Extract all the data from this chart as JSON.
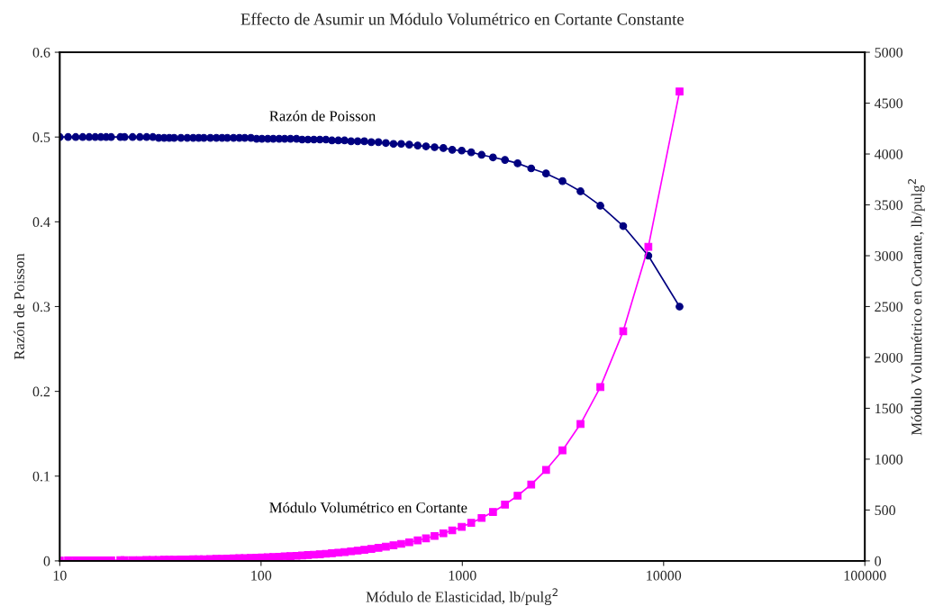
{
  "chart_data": {
    "type": "line",
    "title": "Effecto de Asumir un Módulo Volumétrico en Cortante Constante",
    "xlabel": "Módulo de Elasticidad, lb/pulg$^{2}$",
    "ylabel": "Razón de Poisson",
    "y2label": "Módulo Volumétrico en Cortante, lb/pulg$^{2}$",
    "x": [
      10,
      11,
      12,
      13,
      14,
      15,
      16,
      17,
      18,
      20,
      21,
      23,
      25,
      27,
      29,
      31,
      33,
      35,
      37,
      40,
      43,
      46,
      49,
      52,
      56,
      60,
      64,
      68,
      73,
      78,
      83,
      89,
      95,
      101,
      108,
      115,
      123,
      131,
      140,
      150,
      160,
      171,
      183,
      196,
      210,
      225,
      242,
      260,
      280,
      302,
      326,
      353,
      383,
      417,
      455,
      497,
      545,
      600,
      660,
      728,
      805,
      891,
      993,
      1107,
      1247,
      1420,
      1629,
      1882,
      2199,
      2606,
      3145,
      3865,
      4850,
      6300,
      8400,
      12000
    ],
    "series": [
      {
        "name": "Razón de Poisson",
        "color": "#000080",
        "marker": "circle",
        "values": [
          0.5,
          0.5,
          0.5,
          0.5,
          0.5,
          0.5,
          0.5,
          0.5,
          0.5,
          0.5,
          0.5,
          0.5,
          0.5,
          0.5,
          0.5,
          0.499,
          0.499,
          0.499,
          0.499,
          0.499,
          0.499,
          0.499,
          0.499,
          0.499,
          0.499,
          0.499,
          0.499,
          0.499,
          0.499,
          0.499,
          0.499,
          0.499,
          0.498,
          0.498,
          0.498,
          0.498,
          0.498,
          0.498,
          0.498,
          0.498,
          0.497,
          0.497,
          0.497,
          0.497,
          0.497,
          0.496,
          0.496,
          0.496,
          0.495,
          0.495,
          0.495,
          0.494,
          0.494,
          0.493,
          0.492,
          0.492,
          0.491,
          0.49,
          0.489,
          0.488,
          0.487,
          0.485,
          0.484,
          0.482,
          0.479,
          0.476,
          0.473,
          0.469,
          0.463,
          0.457,
          0.448,
          0.436,
          0.419,
          0.395,
          0.36,
          0.3
        ]
      },
      {
        "name": "Módulo Volumétrico en Cortante",
        "color": "#ff00ff",
        "marker": "square",
        "axis": "y2",
        "values": [
          3,
          4,
          4,
          4,
          5,
          5,
          5,
          6,
          6,
          7,
          7,
          8,
          8,
          9,
          10,
          10,
          11,
          12,
          12,
          13,
          14,
          15,
          16,
          17,
          19,
          20,
          21,
          23,
          24,
          26,
          28,
          30,
          32,
          34,
          36,
          38,
          41,
          44,
          47,
          50,
          53,
          57,
          61,
          65,
          70,
          75,
          81,
          87,
          94,
          101,
          109,
          118,
          128,
          140,
          153,
          167,
          183,
          201,
          222,
          245,
          271,
          300,
          335,
          374,
          422,
          481,
          553,
          641,
          751,
          895,
          1086,
          1346,
          1709,
          2258,
          3088,
          4615
        ]
      }
    ],
    "xlim": [
      10,
      100000
    ],
    "xticks": [
      10,
      100,
      1000,
      10000,
      100000
    ],
    "log": "x",
    "ylim": [
      0,
      0.6
    ],
    "yticks": [
      0,
      0.1,
      0.2,
      0.3,
      0.4,
      0.5,
      0.6
    ],
    "y2lim": [
      0,
      5000
    ],
    "y2ticks": [
      0,
      500,
      1000,
      1500,
      2000,
      2500,
      3000,
      3500,
      4000,
      4500,
      5000
    ],
    "grid": false,
    "legend": false
  }
}
